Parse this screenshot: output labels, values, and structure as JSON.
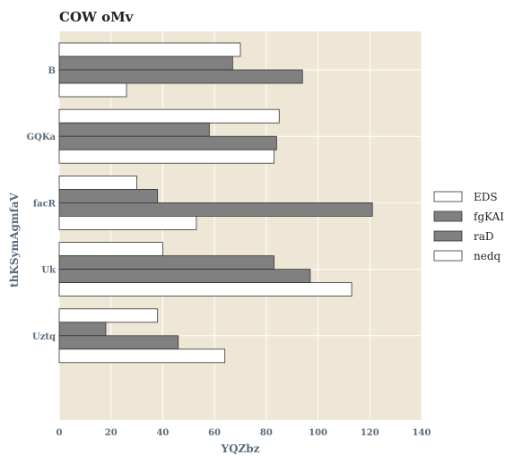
{
  "chart_data": {
    "type": "bar",
    "orientation": "horizontal",
    "title": "COW oMv",
    "xlabel": "YQZbz",
    "ylabel": "thKSymAgmfaV",
    "categories": [
      "B",
      "GQKa",
      "facR",
      "Uk",
      "Uztq"
    ],
    "series": [
      {
        "name": "EDS",
        "color": "#ffffff",
        "values": [
          70,
          85,
          30,
          40,
          38
        ]
      },
      {
        "name": "fgKAI",
        "color": "#808080",
        "values": [
          67,
          58,
          38,
          83,
          18
        ]
      },
      {
        "name": "raD",
        "color": "#808080",
        "values": [
          94,
          84,
          121,
          97,
          46
        ]
      },
      {
        "name": "nedq",
        "color": "#ffffff",
        "values": [
          26,
          83,
          53,
          113,
          64
        ]
      }
    ],
    "xlim": [
      0,
      140
    ],
    "xticks": [
      0,
      20,
      40,
      60,
      80,
      100,
      120,
      140
    ],
    "grid": true,
    "legend_position": "right",
    "plot_background": "#efe7d5"
  }
}
